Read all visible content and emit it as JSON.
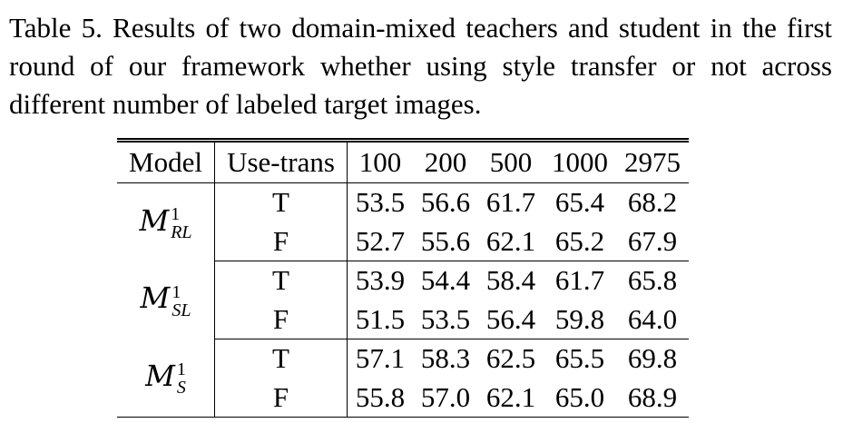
{
  "caption": "Table 5. Results of two domain-mixed teachers and student in the first round of our framework whether using style transfer or not across different number of labeled target images.",
  "table": {
    "headers": [
      "Model",
      "Use-trans",
      "100",
      "200",
      "500",
      "1000",
      "2975"
    ],
    "groups": [
      {
        "model_symbol": "M",
        "model_superscript": "1",
        "model_subscript": "RL",
        "rows": [
          {
            "use_trans": "T",
            "values": [
              "53.5",
              "56.6",
              "61.7",
              "65.4",
              "68.2"
            ]
          },
          {
            "use_trans": "F",
            "values": [
              "52.7",
              "55.6",
              "62.1",
              "65.2",
              "67.9"
            ]
          }
        ]
      },
      {
        "model_symbol": "M",
        "model_superscript": "1",
        "model_subscript": "SL",
        "rows": [
          {
            "use_trans": "T",
            "values": [
              "53.9",
              "54.4",
              "58.4",
              "61.7",
              "65.8"
            ]
          },
          {
            "use_trans": "F",
            "values": [
              "51.5",
              "53.5",
              "56.4",
              "59.8",
              "64.0"
            ]
          }
        ]
      },
      {
        "model_symbol": "M",
        "model_superscript": "1",
        "model_subscript": "S",
        "rows": [
          {
            "use_trans": "T",
            "values": [
              "57.1",
              "58.3",
              "62.5",
              "65.5",
              "69.8"
            ]
          },
          {
            "use_trans": "F",
            "values": [
              "55.8",
              "57.0",
              "62.1",
              "65.0",
              "68.9"
            ]
          }
        ]
      }
    ]
  }
}
